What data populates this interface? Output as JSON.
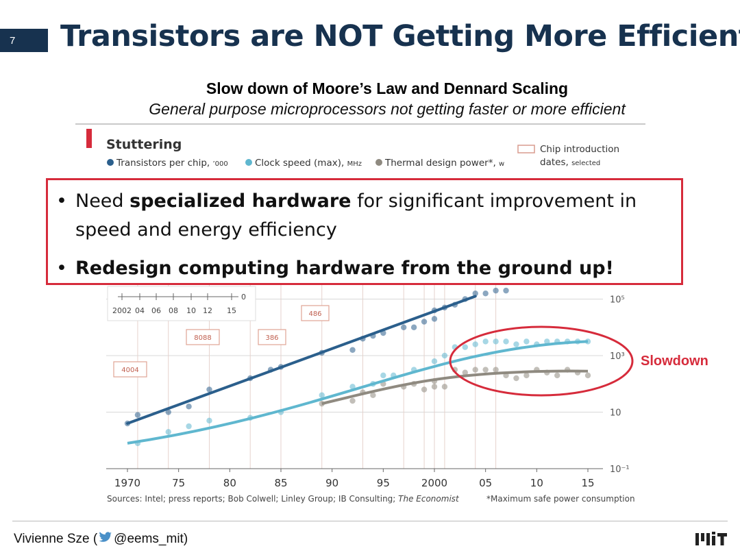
{
  "slide": {
    "number": "7",
    "title": "Transistors are NOT Getting More Efficient",
    "subtitle": "Slow down of Moore’s Law and Dennard Scaling",
    "subtitle_italic": "General purpose microprocessors not getting faster or more efficient"
  },
  "callout": {
    "bullet1_pre": "Need ",
    "bullet1_bold": "specialized hardware",
    "bullet1_post": " for significant improvement in speed and energy efficiency",
    "bullet2": "Redesign computing hardware from the ground up!",
    "bullet_char": "•"
  },
  "annotation": {
    "slowdown": "Slowdown"
  },
  "footer": {
    "author_pre": "Vivienne Sze (",
    "handle": "@eems_mit)",
    "logo": "MIT"
  },
  "colors": {
    "title": "#17324f",
    "accent_red": "#d62b3b",
    "transistors": "#2b5f8c",
    "clock": "#5fb7cf",
    "power": "#8f8a80"
  },
  "chart_data": {
    "type": "scatter",
    "title": "Stuttering",
    "x_range": [
      1970,
      2015
    ],
    "y_scale": "log",
    "y_range_log": [
      -1.3,
      5.3
    ],
    "xticks": [
      1970,
      1975,
      1980,
      1985,
      1990,
      1995,
      2000,
      2005,
      2010,
      2015
    ],
    "xtick_labels": [
      "1970",
      "75",
      "80",
      "85",
      "90",
      "95",
      "2000",
      "05",
      "10",
      "15"
    ],
    "yticks": [
      {
        "log": -1,
        "label": "10⁻¹"
      },
      {
        "log": 1,
        "label": "10"
      },
      {
        "log": 3,
        "label": "10³"
      },
      {
        "log": 5,
        "label": "10⁵"
      }
    ],
    "legend": [
      {
        "name": "Transistors per chip,",
        "unit": "’000",
        "color": "#2b5f8c"
      },
      {
        "name": "Clock speed (max),",
        "unit": "MHz",
        "color": "#5fb7cf"
      },
      {
        "name": "Thermal design power*,",
        "unit": "w",
        "color": "#8f8a80"
      }
    ],
    "legend_chip": {
      "label": "Chip introduction",
      "label2": "dates,",
      "label2_small": "selected"
    },
    "chips": [
      {
        "name": "4004",
        "year": 1971
      },
      {
        "name": "8088",
        "year": 1979
      },
      {
        "name": "386",
        "year": 1985
      },
      {
        "name": "486",
        "year": 1989
      }
    ],
    "inset": {
      "labels": [
        "2002",
        "04",
        "06",
        "08",
        "10",
        "12",
        "15"
      ],
      "zero": "0"
    },
    "series": [
      {
        "name": "Transistors per chip",
        "color": "#2b5f8c",
        "trend": [
          [
            1970,
            0.6
          ],
          [
            2004,
            5.1
          ]
        ],
        "points": [
          [
            1970,
            0.6
          ],
          [
            1971,
            0.9
          ],
          [
            1974,
            1.0
          ],
          [
            1976,
            1.2
          ],
          [
            1978,
            1.8
          ],
          [
            1982,
            2.2
          ],
          [
            1984,
            2.5
          ],
          [
            1985,
            2.6
          ],
          [
            1989,
            3.1
          ],
          [
            1992,
            3.2
          ],
          [
            1993,
            3.6
          ],
          [
            1994,
            3.7
          ],
          [
            1995,
            3.8
          ],
          [
            1997,
            4.0
          ],
          [
            1998,
            4.0
          ],
          [
            1999,
            4.2
          ],
          [
            2000,
            4.3
          ],
          [
            2000,
            4.6
          ],
          [
            2001,
            4.7
          ],
          [
            2002,
            4.8
          ],
          [
            2003,
            5.0
          ],
          [
            2004,
            5.2
          ],
          [
            2005,
            5.2
          ],
          [
            2006,
            5.3
          ],
          [
            2007,
            5.3
          ]
        ]
      },
      {
        "name": "Clock speed (max)",
        "color": "#5fb7cf",
        "trend": [
          [
            1970,
            -0.1
          ],
          [
            2015,
            3.5
          ]
        ],
        "points": [
          [
            1971,
            -0.1
          ],
          [
            1974,
            0.3
          ],
          [
            1976,
            0.5
          ],
          [
            1978,
            0.7
          ],
          [
            1982,
            0.8
          ],
          [
            1985,
            1.0
          ],
          [
            1989,
            1.6
          ],
          [
            1992,
            1.9
          ],
          [
            1994,
            2.0
          ],
          [
            1995,
            2.3
          ],
          [
            1996,
            2.3
          ],
          [
            1998,
            2.5
          ],
          [
            2000,
            2.8
          ],
          [
            2001,
            3.0
          ],
          [
            2002,
            3.3
          ],
          [
            2003,
            3.3
          ],
          [
            2004,
            3.4
          ],
          [
            2005,
            3.5
          ],
          [
            2006,
            3.5
          ],
          [
            2007,
            3.5
          ],
          [
            2008,
            3.4
          ],
          [
            2009,
            3.5
          ],
          [
            2010,
            3.4
          ],
          [
            2011,
            3.5
          ],
          [
            2012,
            3.5
          ],
          [
            2013,
            3.5
          ],
          [
            2014,
            3.5
          ],
          [
            2015,
            3.5
          ]
        ]
      },
      {
        "name": "Thermal design power",
        "color": "#8f8a80",
        "trend": [
          [
            1989,
            1.3
          ],
          [
            2015,
            2.4
          ]
        ],
        "points": [
          [
            1989,
            1.3
          ],
          [
            1992,
            1.4
          ],
          [
            1993,
            1.7
          ],
          [
            1994,
            1.6
          ],
          [
            1995,
            2.0
          ],
          [
            1997,
            1.9
          ],
          [
            1998,
            2.0
          ],
          [
            1999,
            1.8
          ],
          [
            2000,
            2.1
          ],
          [
            2000,
            1.9
          ],
          [
            2001,
            1.9
          ],
          [
            2002,
            2.5
          ],
          [
            2003,
            2.4
          ],
          [
            2004,
            2.5
          ],
          [
            2005,
            2.5
          ],
          [
            2006,
            2.5
          ],
          [
            2007,
            2.3
          ],
          [
            2008,
            2.2
          ],
          [
            2009,
            2.3
          ],
          [
            2010,
            2.5
          ],
          [
            2011,
            2.4
          ],
          [
            2012,
            2.3
          ],
          [
            2013,
            2.5
          ],
          [
            2014,
            2.4
          ],
          [
            2015,
            2.3
          ]
        ]
      }
    ],
    "source": "Sources: Intel; press reports; Bob Colwell; Linley Group; IB Consulting;",
    "source_italic": "The Economist",
    "footnote": "*Maximum safe power consumption"
  }
}
